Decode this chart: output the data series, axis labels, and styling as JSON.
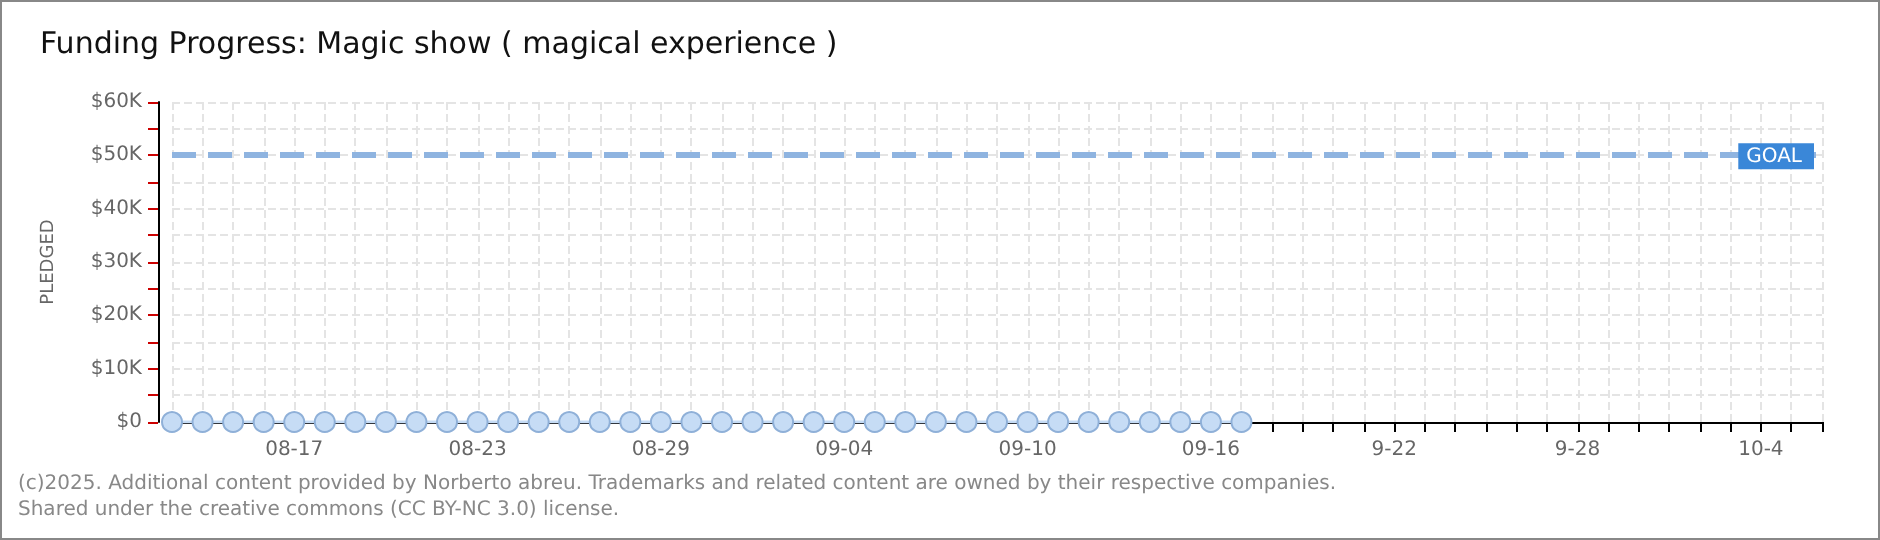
{
  "chart_data": {
    "type": "line",
    "title": "Funding Progress: Magic show ( magical experience )",
    "ylabel": "PLEDGED",
    "categories": [
      null,
      null,
      null,
      null,
      "08-17",
      null,
      null,
      null,
      null,
      null,
      "08-23",
      null,
      null,
      null,
      null,
      null,
      "08-29",
      null,
      null,
      null,
      null,
      null,
      "09-04",
      null,
      null,
      null,
      null,
      null,
      "09-10",
      null,
      null,
      null,
      null,
      null,
      "09-16",
      null,
      null,
      null,
      null,
      null,
      "9-22",
      null,
      null,
      null,
      null,
      null,
      "9-28",
      null,
      null,
      null,
      null,
      null,
      "10-4",
      null,
      null
    ],
    "series": [
      {
        "color": "#c6dcf5",
        "values": [
          0,
          0,
          0,
          0,
          0,
          0,
          0,
          0,
          0,
          0,
          0,
          0,
          0,
          0,
          0,
          0,
          0,
          0,
          0,
          0,
          0,
          0,
          0,
          0,
          0,
          0,
          0,
          0,
          0,
          0,
          0,
          0,
          0,
          0,
          0,
          0,
          null,
          null,
          null,
          null,
          null,
          null,
          null,
          null,
          null,
          null,
          null,
          null,
          null,
          null,
          null,
          null,
          null,
          null,
          null
        ]
      }
    ],
    "ylim": [
      0,
      60000
    ],
    "yticks": [
      {
        "value": 0,
        "label": "$0"
      },
      {
        "value": 5000,
        "label": null
      },
      {
        "value": 10000,
        "label": "$10K"
      },
      {
        "value": 15000,
        "label": null
      },
      {
        "value": 20000,
        "label": "$20K"
      },
      {
        "value": 25000,
        "label": null
      },
      {
        "value": 30000,
        "label": "$30K"
      },
      {
        "value": 35000,
        "label": null
      },
      {
        "value": 40000,
        "label": "$40K"
      },
      {
        "value": 45000,
        "label": null
      },
      {
        "value": 50000,
        "label": "$50K"
      },
      {
        "value": 55000,
        "label": null
      },
      {
        "value": 60000,
        "label": "$60K"
      }
    ],
    "ref_lines": [
      {
        "axis": "y",
        "value": 50000,
        "label": "GOAL",
        "color": "#8fb4e0",
        "line_style": "dashed"
      }
    ],
    "grid": true,
    "marker": "circle",
    "line_style": "solid",
    "annotations": [
      "(c)2025. Additional content provided by Norberto abreu. Trademarks and related content are owned by their respective companies.",
      "Shared under the creative commons (CC BY-NC 3.0) license."
    ]
  }
}
